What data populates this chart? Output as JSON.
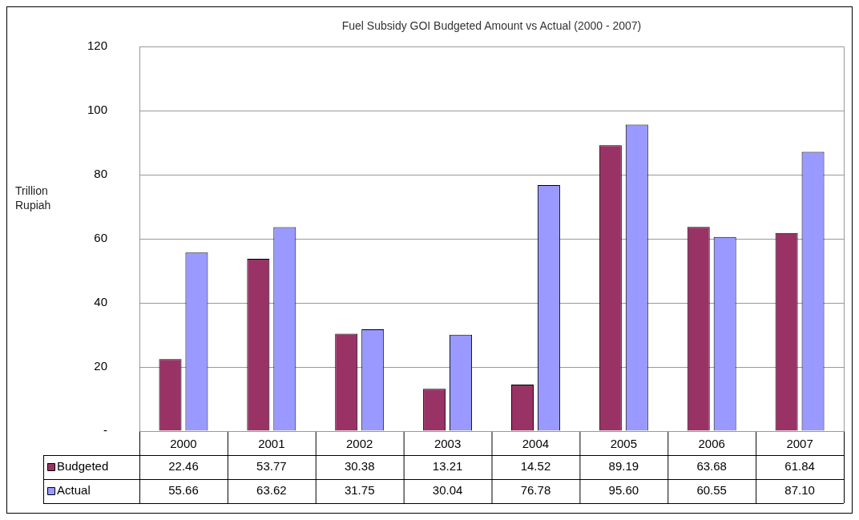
{
  "chart_data": {
    "type": "bar",
    "title": "Fuel Subsidy GOI Budgeted Amount vs Actual (2000 - 2007)",
    "ylabel": "Trillion Rupiah",
    "categories": [
      "2000",
      "2001",
      "2002",
      "2003",
      "2004",
      "2005",
      "2006",
      "2007"
    ],
    "series": [
      {
        "name": "Budgeted",
        "color": "#993366",
        "values": [
          22.46,
          53.77,
          30.38,
          13.21,
          14.52,
          89.19,
          63.68,
          61.84
        ],
        "value_labels": [
          "22.46",
          "53.77",
          "30.38",
          "13.21",
          "14.52",
          "89.19",
          "63.68",
          "61.84"
        ]
      },
      {
        "name": "Actual",
        "color": "#9999ff",
        "values": [
          55.66,
          63.62,
          31.75,
          30.04,
          76.78,
          95.6,
          60.55,
          87.1
        ],
        "value_labels": [
          "55.66",
          "63.62",
          "31.75",
          "30.04",
          "76.78",
          "95.60",
          "60.55",
          "87.10"
        ]
      }
    ],
    "ylim": [
      0,
      120
    ],
    "yticks": [
      {
        "value": 0,
        "label": "-"
      },
      20,
      40,
      60,
      80,
      100,
      120
    ],
    "grid": "y",
    "legend": "bottom"
  }
}
